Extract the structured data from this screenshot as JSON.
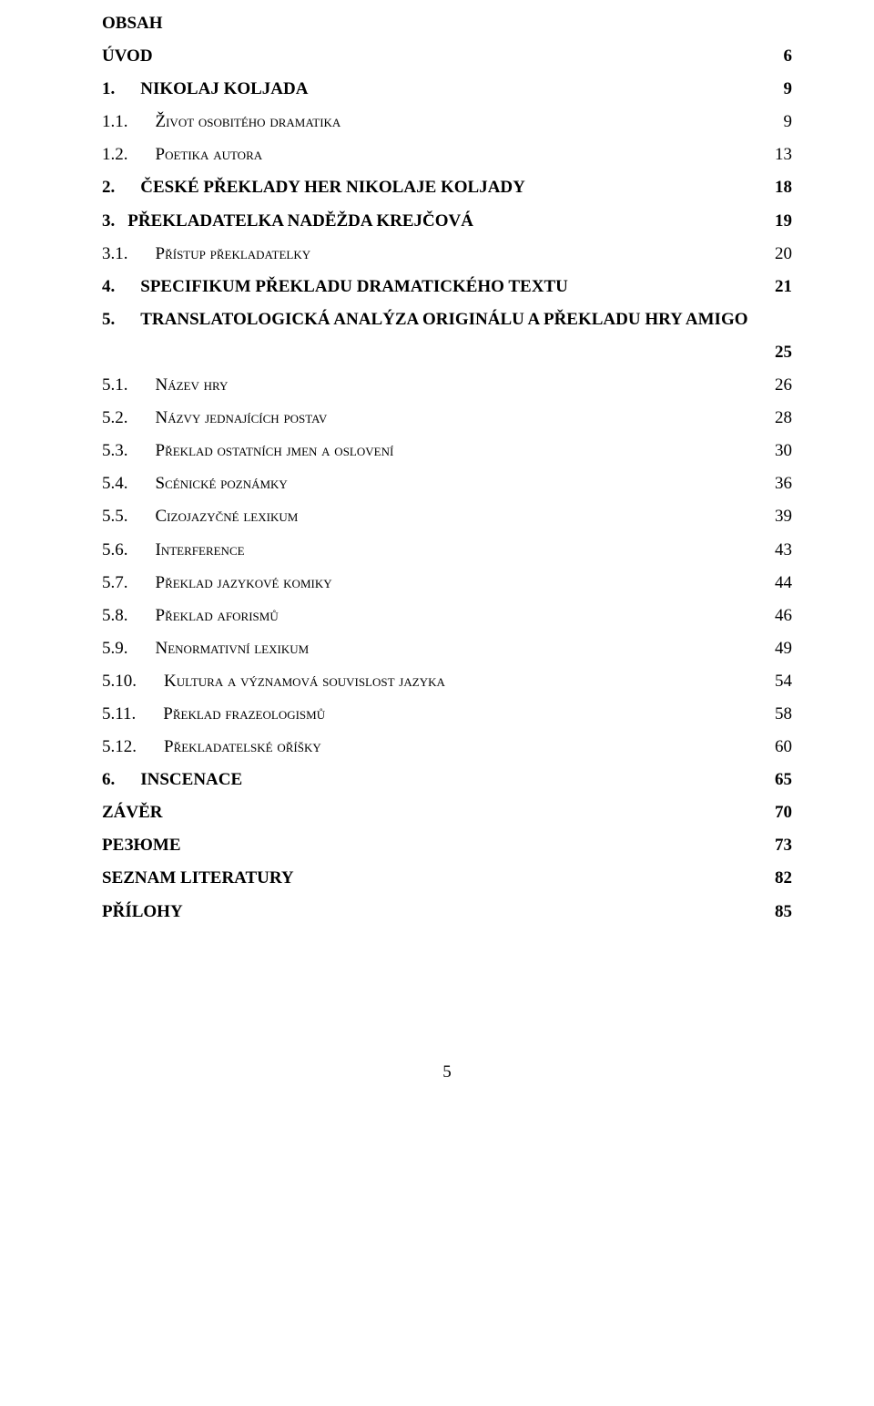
{
  "heading": "OBSAH",
  "footer_page": "5",
  "entries": [
    {
      "prefix": "",
      "label": "ÚVOD",
      "page": "6",
      "bold": true,
      "smallcaps": false,
      "indent": "none"
    },
    {
      "prefix": "1.",
      "label": "NIKOLAJ KOLJADA",
      "page": "9",
      "bold": true,
      "smallcaps": false,
      "indent": "period"
    },
    {
      "prefix": "1.1.",
      "label": "Život osobitého dramatika",
      "page": "9",
      "bold": false,
      "smallcaps": true,
      "indent": "sub"
    },
    {
      "prefix": "1.2.",
      "label": "Poetika autora",
      "page": "13",
      "bold": false,
      "smallcaps": true,
      "indent": "sub"
    },
    {
      "prefix": "2.",
      "label": "ČESKÉ PŘEKLADY HER NIKOLAJE KOLJADY",
      "page": "18",
      "bold": true,
      "smallcaps": false,
      "indent": "period"
    },
    {
      "prefix": "3.",
      "label": "PŘEKLADATELKA NADĚŽDA KREJČOVÁ",
      "page": "19",
      "bold": true,
      "smallcaps": false,
      "indent": "after3"
    },
    {
      "prefix": "3.1.",
      "label": "Přístup překladatelky",
      "page": "20",
      "bold": false,
      "smallcaps": true,
      "indent": "sub"
    },
    {
      "prefix": "4.",
      "label": "SPECIFIKUM PŘEKLADU DRAMATICKÉHO TEXTU",
      "page": "21",
      "bold": true,
      "smallcaps": false,
      "indent": "period"
    },
    {
      "prefix": "5.",
      "label": "TRANSLATOLOGICKÁ ANALÝZA ORIGINÁLU A PŘEKLADU HRY AMIGO",
      "page": "25",
      "bold": true,
      "smallcaps": false,
      "indent": "period",
      "wrap": true
    },
    {
      "prefix": "5.1.",
      "label": "Název hry",
      "page": "26",
      "bold": false,
      "smallcaps": true,
      "indent": "sub"
    },
    {
      "prefix": "5.2.",
      "label": "Názvy jednajících postav",
      "page": "28",
      "bold": false,
      "smallcaps": true,
      "indent": "sub"
    },
    {
      "prefix": "5.3.",
      "label": "Překlad ostatních jmen a oslovení",
      "page": "30",
      "bold": false,
      "smallcaps": true,
      "indent": "sub"
    },
    {
      "prefix": "5.4.",
      "label": "Scénické poznámky",
      "page": "36",
      "bold": false,
      "smallcaps": true,
      "indent": "sub"
    },
    {
      "prefix": "5.5.",
      "label": "Cizojazyčné lexikum",
      "page": "39",
      "bold": false,
      "smallcaps": true,
      "indent": "sub"
    },
    {
      "prefix": "5.6.",
      "label": "Interference",
      "page": "43",
      "bold": false,
      "smallcaps": true,
      "indent": "sub"
    },
    {
      "prefix": "5.7.",
      "label": "Překlad jazykové komiky",
      "page": "44",
      "bold": false,
      "smallcaps": true,
      "indent": "sub"
    },
    {
      "prefix": "5.8.",
      "label": "Překlad aforismů",
      "page": "46",
      "bold": false,
      "smallcaps": true,
      "indent": "sub"
    },
    {
      "prefix": "5.9.",
      "label": "Nenormativní lexikum",
      "page": "49",
      "bold": false,
      "smallcaps": true,
      "indent": "sub"
    },
    {
      "prefix": "5.10.",
      "label": "Kultura a významová souvislost jazyka",
      "page": "54",
      "bold": false,
      "smallcaps": true,
      "indent": "sub"
    },
    {
      "prefix": "5.11.",
      "label": "Překlad frazeologismů",
      "page": "58",
      "bold": false,
      "smallcaps": true,
      "indent": "sub"
    },
    {
      "prefix": "5.12.",
      "label": "Překladatelské oříšky",
      "page": "60",
      "bold": false,
      "smallcaps": true,
      "indent": "sub"
    },
    {
      "prefix": "6.",
      "label": "INSCENACE",
      "page": "65",
      "bold": true,
      "smallcaps": false,
      "indent": "period"
    },
    {
      "prefix": "",
      "label": "ZÁVĚR",
      "page": "70",
      "bold": true,
      "smallcaps": false,
      "indent": "none"
    },
    {
      "prefix": "",
      "label": "РЕЗЮМЕ",
      "page": "73",
      "bold": true,
      "smallcaps": false,
      "indent": "none"
    },
    {
      "prefix": "",
      "label": "SEZNAM LITERATURY",
      "page": "82",
      "bold": true,
      "smallcaps": false,
      "indent": "none"
    },
    {
      "prefix": "",
      "label": "PŘÍLOHY",
      "page": "85",
      "bold": true,
      "smallcaps": false,
      "indent": "none"
    }
  ]
}
